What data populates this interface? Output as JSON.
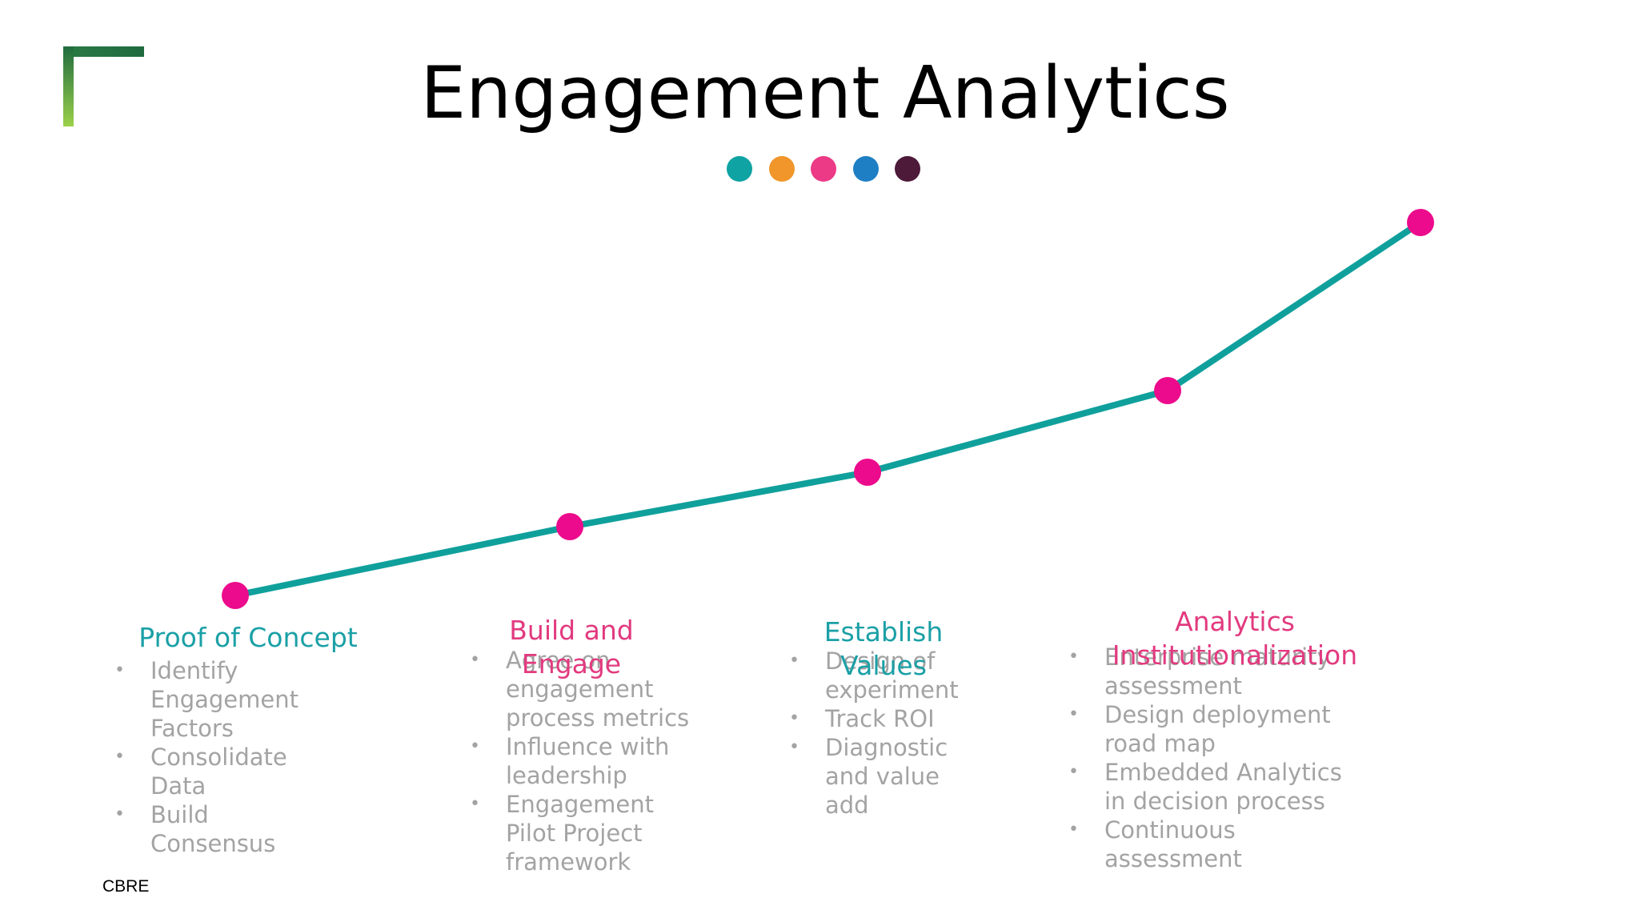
{
  "title": "Engagement Analytics",
  "stages": [
    {
      "title": "Proof of Concept",
      "bullets": [
        "Identify Engagement Factors",
        "Consolidate Data",
        "Build Consensus"
      ]
    },
    {
      "title": "Build and Engage",
      "bullets": [
        "Agree on engagement process metrics",
        "Influence with leadership",
        "Engagement Pilot Project framework"
      ]
    },
    {
      "title": "Establish Values",
      "bullets": [
        "Design of experiment",
        "Track ROI",
        "Diagnostic and value add"
      ]
    },
    {
      "title": "Analytics Institutionalization",
      "bullets": [
        "Enterprise maturity assessment",
        "Design deployment road map",
        "Embedded Analytics in decision process",
        "Continuous assessment"
      ]
    }
  ],
  "footer": "CBRE"
}
